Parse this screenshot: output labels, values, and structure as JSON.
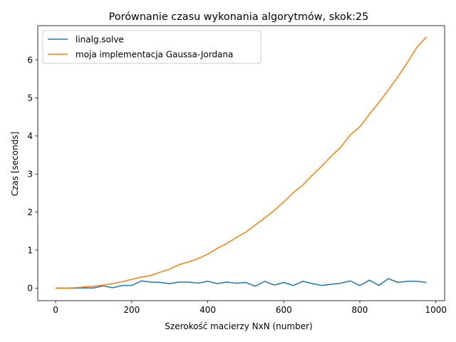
{
  "chart_data": {
    "type": "line",
    "title": "Porównanie czasu wykonania algorytmów, skok:25",
    "xlabel": "Szerokość macierzy NxN (number)",
    "ylabel": "Czas [seconds]",
    "xlim": [
      -47,
      1023
    ],
    "ylim": [
      -0.33,
      6.9
    ],
    "xticks": [
      0,
      200,
      400,
      600,
      800,
      1000
    ],
    "yticks": [
      0,
      1,
      2,
      3,
      4,
      5,
      6
    ],
    "grid": false,
    "legend_position": "top-left",
    "x": [
      0,
      25,
      50,
      75,
      100,
      125,
      150,
      175,
      200,
      225,
      250,
      275,
      300,
      325,
      350,
      375,
      400,
      425,
      450,
      475,
      500,
      525,
      550,
      575,
      600,
      625,
      650,
      675,
      700,
      725,
      750,
      775,
      800,
      825,
      850,
      875,
      900,
      925,
      950,
      975
    ],
    "series": [
      {
        "name": "linalg.solve",
        "color": "#1f77b4",
        "values": [
          0,
          0,
          0,
          0.005,
          0.005,
          0.06,
          0.01,
          0.07,
          0.07,
          0.19,
          0.16,
          0.15,
          0.12,
          0.16,
          0.16,
          0.13,
          0.18,
          0.12,
          0.16,
          0.13,
          0.15,
          0.05,
          0.18,
          0.08,
          0.15,
          0.07,
          0.18,
          0.12,
          0.07,
          0.1,
          0.13,
          0.19,
          0.07,
          0.21,
          0.07,
          0.25,
          0.15,
          0.18,
          0.18,
          0.15
        ]
      },
      {
        "name": "moja implementacja Gaussa-Jordana",
        "color": "#ff7f0e",
        "values": [
          0,
          0,
          0.01,
          0.03,
          0.05,
          0.08,
          0.12,
          0.17,
          0.23,
          0.29,
          0.33,
          0.42,
          0.5,
          0.62,
          0.69,
          0.78,
          0.89,
          1.05,
          1.17,
          1.33,
          1.47,
          1.66,
          1.85,
          2.04,
          2.27,
          2.51,
          2.71,
          2.97,
          3.21,
          3.47,
          3.71,
          4.03,
          4.24,
          4.57,
          4.88,
          5.21,
          5.56,
          5.93,
          6.33,
          6.6
        ]
      }
    ]
  }
}
